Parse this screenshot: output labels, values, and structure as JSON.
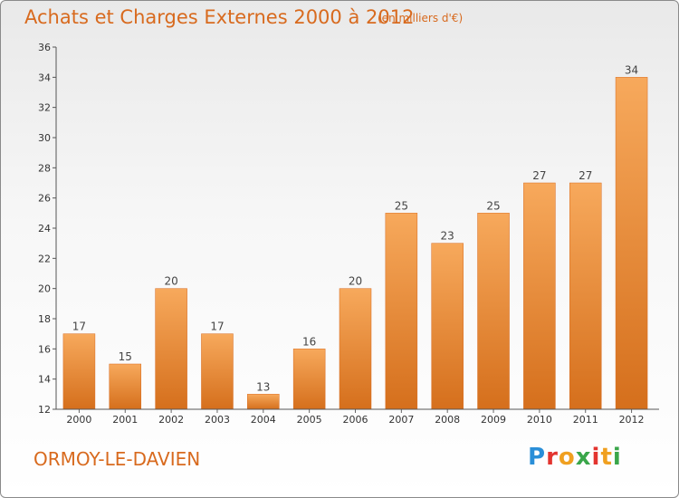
{
  "title": "Achats et Charges Externes 2000 à 2012",
  "unit_note": "(en milliers d'€)",
  "town": "ORMOY-LE-DAVIEN",
  "logo": {
    "letters": [
      "P",
      "r",
      "o",
      "x",
      "i",
      "t",
      "i"
    ],
    "colors": [
      "#2a8fd8",
      "#e3342f",
      "#f0a020",
      "#3aa64a",
      "#e3342f",
      "#f0a020",
      "#3aa64a"
    ]
  },
  "colors": {
    "accent": "#d86a1e",
    "bar_top": "#f7a95c",
    "bar_bottom": "#d56f1c"
  },
  "chart_data": {
    "type": "bar",
    "categories": [
      "2000",
      "2001",
      "2002",
      "2003",
      "2004",
      "2005",
      "2006",
      "2007",
      "2008",
      "2009",
      "2010",
      "2011",
      "2012"
    ],
    "values": [
      17,
      15,
      20,
      17,
      13,
      16,
      20,
      25,
      23,
      25,
      27,
      27,
      34
    ],
    "yticks": [
      12,
      14,
      16,
      18,
      20,
      22,
      24,
      26,
      28,
      30,
      32,
      34,
      36
    ],
    "ylim": [
      12,
      36
    ],
    "grid": false,
    "data_labels": true
  }
}
